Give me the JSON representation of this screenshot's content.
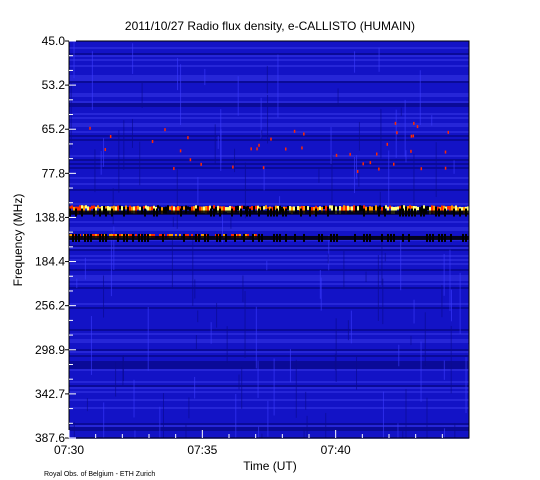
{
  "chart_data": {
    "type": "heatmap",
    "title": "2011/10/27  Radio flux density, e-CALLISTO (HUMAIN)",
    "xlabel": "Time (UT)",
    "ylabel": "Frequency (MHz)",
    "x_ticks": [
      "07:30",
      "07:35",
      "07:40"
    ],
    "x_range": [
      "07:30",
      "07:45"
    ],
    "y_ticks": [
      "45.0",
      "53.2",
      "65.2",
      "77.8",
      "138.8",
      "184.4",
      "256.2",
      "298.9",
      "342.7",
      "387.6"
    ],
    "y_range": [
      45.0,
      387.6
    ],
    "y_direction": "inverted (low frequency at top)",
    "colormap": [
      "#000000",
      "#0a0a8c",
      "#1a1ae0",
      "#3c3cff",
      "#ff2a00",
      "#ff9a00",
      "#ffff80"
    ],
    "background_color": "#0d0da6",
    "features": [
      {
        "description": "bright intermittent band",
        "frequency_mhz": 126,
        "start": "07:30",
        "end": "07:45",
        "intensity": "high"
      },
      {
        "description": "dark band",
        "frequency_mhz": 132,
        "start": "07:30",
        "end": "07:45",
        "intensity": "low"
      },
      {
        "description": "intermittent red band",
        "frequency_mhz": 158,
        "start": "07:30",
        "end": "07:37",
        "intensity": "medium-high"
      },
      {
        "description": "dark band",
        "frequency_mhz": 160,
        "start": "07:30",
        "end": "07:45",
        "intensity": "low"
      },
      {
        "description": "scattered red spikes",
        "frequency_mhz": 70,
        "start": "07:30",
        "end": "07:45",
        "intensity": "medium"
      }
    ]
  },
  "credit": "Royal Obs. of Belgium - ETH Zurich"
}
